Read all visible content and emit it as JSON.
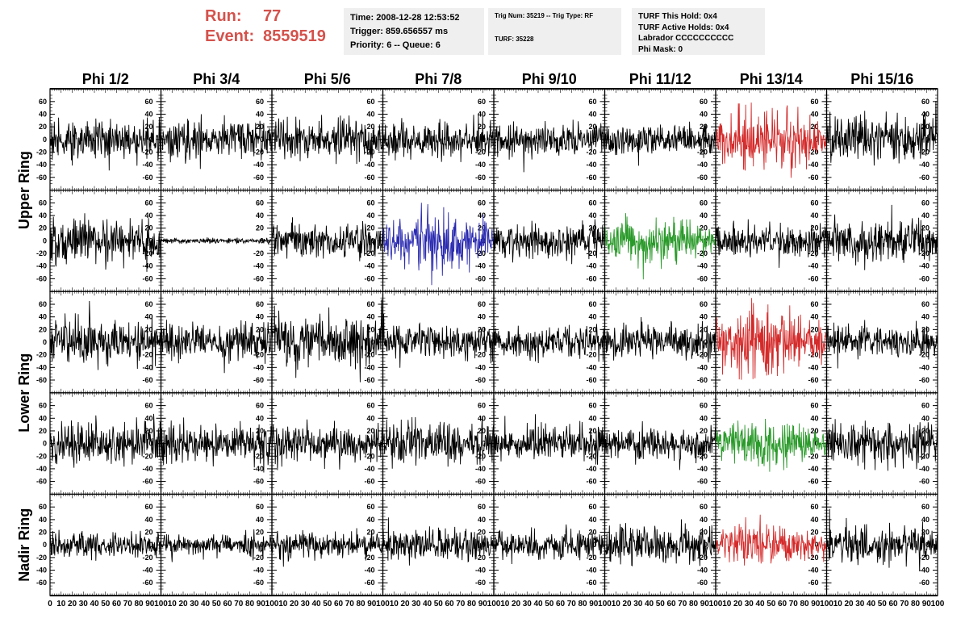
{
  "header": {
    "run_label": "Run:",
    "run_value": "77",
    "event_label": "Event:",
    "event_value": "8559519",
    "time": "Time: 2008-12-28 12:53:52",
    "trigger": "Trigger: 859.656557 ms",
    "priority": "Priority: 6 -- Queue: 6",
    "trig_num": "Trig Num: 35219 -- Trig Type: RF",
    "turf": "TURF: 35228",
    "turf_this_hold": "TURF This Hold: 0x4",
    "turf_active_holds": "TURF Active Holds: 0x4",
    "labrador": "Labrador CCCCCCCCCC",
    "phi_mask": "Phi Mask: 0"
  },
  "colors": {
    "header_text": "#d4524c",
    "default_trace": "#000000",
    "red_trace": "#d42a2a",
    "blue_trace": "#2a2ab0",
    "green_trace": "#2a9a2a",
    "info_box_bg": "#efefef"
  },
  "chart_data": {
    "type": "line",
    "column_titles": [
      "Phi 1/2",
      "Phi 3/4",
      "Phi 5/6",
      "Phi 7/8",
      "Phi 9/10",
      "Phi 11/12",
      "Phi 13/14",
      "Phi 15/16"
    ],
    "row_titles": [
      "Upper Ring",
      "Upper Ring",
      "Lower Ring",
      "Lower Ring",
      "Nadir Ring"
    ],
    "row_title_labels": [
      {
        "text": "Upper Ring",
        "rows": [
          0,
          1
        ]
      },
      {
        "text": "Lower Ring",
        "rows": [
          2,
          3
        ]
      },
      {
        "text": "Nadir Ring",
        "rows": [
          4
        ]
      }
    ],
    "ylim": [
      -70,
      70
    ],
    "y_ticks": [
      -60,
      -40,
      -20,
      0,
      20,
      40,
      60
    ],
    "xlim": [
      0,
      100
    ],
    "x_ticks": [
      0,
      10,
      20,
      30,
      40,
      50,
      60,
      70,
      80,
      90,
      100
    ],
    "x_tick_labels_first": [
      "0",
      "10",
      "20",
      "30",
      "40",
      "50",
      "60",
      "70",
      "80",
      "90",
      "100"
    ],
    "x_tick_labels_rest": [
      "",
      "10",
      "20",
      "30",
      "40",
      "50",
      "60",
      "70",
      "80",
      "90",
      "100"
    ],
    "samples_per_trace": 260,
    "panels": [
      [
        {
          "amp": 15,
          "color": "black"
        },
        {
          "amp": 15,
          "color": "black"
        },
        {
          "amp": 15,
          "color": "black"
        },
        {
          "amp": 13,
          "color": "black"
        },
        {
          "amp": 13,
          "color": "black"
        },
        {
          "amp": 13,
          "color": "black"
        },
        {
          "amp": 22,
          "color": "red"
        },
        {
          "amp": 17,
          "color": "black"
        }
      ],
      [
        {
          "amp": 16,
          "color": "black"
        },
        {
          "amp": 2,
          "color": "black"
        },
        {
          "amp": 14,
          "color": "black"
        },
        {
          "amp": 20,
          "color": "blue"
        },
        {
          "amp": 14,
          "color": "black"
        },
        {
          "amp": 16,
          "color": "green"
        },
        {
          "amp": 13,
          "color": "black"
        },
        {
          "amp": 17,
          "color": "black"
        }
      ],
      [
        {
          "amp": 17,
          "color": "black"
        },
        {
          "amp": 14,
          "color": "black"
        },
        {
          "amp": 20,
          "color": "black"
        },
        {
          "amp": 13,
          "color": "black"
        },
        {
          "amp": 12,
          "color": "black"
        },
        {
          "amp": 13,
          "color": "black"
        },
        {
          "amp": 24,
          "color": "red"
        },
        {
          "amp": 13,
          "color": "black"
        }
      ],
      [
        {
          "amp": 17,
          "color": "black"
        },
        {
          "amp": 15,
          "color": "black"
        },
        {
          "amp": 15,
          "color": "black"
        },
        {
          "amp": 16,
          "color": "black"
        },
        {
          "amp": 14,
          "color": "black"
        },
        {
          "amp": 13,
          "color": "black"
        },
        {
          "amp": 15,
          "color": "green"
        },
        {
          "amp": 16,
          "color": "black"
        }
      ],
      [
        {
          "amp": 11,
          "color": "black"
        },
        {
          "amp": 9,
          "color": "black"
        },
        {
          "amp": 10,
          "color": "black"
        },
        {
          "amp": 13,
          "color": "black"
        },
        {
          "amp": 11,
          "color": "black"
        },
        {
          "amp": 15,
          "color": "black"
        },
        {
          "amp": 14,
          "color": "red"
        },
        {
          "amp": 14,
          "color": "black"
        }
      ]
    ]
  }
}
